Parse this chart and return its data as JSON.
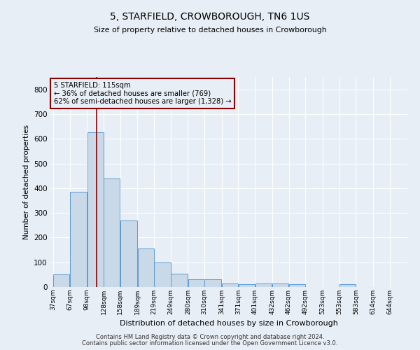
{
  "title": "5, STARFIELD, CROWBOROUGH, TN6 1US",
  "subtitle": "Size of property relative to detached houses in Crowborough",
  "xlabel": "Distribution of detached houses by size in Crowborough",
  "ylabel": "Number of detached properties",
  "bar_color": "#c9d9e8",
  "bar_edge_color": "#5b9bd5",
  "bin_labels": [
    "37sqm",
    "67sqm",
    "98sqm",
    "128sqm",
    "158sqm",
    "189sqm",
    "219sqm",
    "249sqm",
    "280sqm",
    "310sqm",
    "341sqm",
    "371sqm",
    "401sqm",
    "432sqm",
    "462sqm",
    "492sqm",
    "523sqm",
    "553sqm",
    "583sqm",
    "614sqm",
    "644sqm"
  ],
  "bar_heights": [
    50,
    385,
    625,
    440,
    270,
    155,
    100,
    55,
    30,
    30,
    15,
    10,
    15,
    15,
    10,
    0,
    0,
    10,
    0,
    0,
    0
  ],
  "vline_x": 115,
  "vline_color": "#8b0000",
  "annotation_text": "5 STARFIELD: 115sqm\n← 36% of detached houses are smaller (769)\n62% of semi-detached houses are larger (1,328) →",
  "annotation_box_color": "#8b0000",
  "annotation_text_color": "#000000",
  "ylim": [
    0,
    850
  ],
  "yticks": [
    0,
    100,
    200,
    300,
    400,
    500,
    600,
    700,
    800
  ],
  "grid_color": "#ffffff",
  "bg_color": "#e8eef5",
  "footer_line1": "Contains HM Land Registry data © Crown copyright and database right 2024.",
  "footer_line2": "Contains public sector information licensed under the Open Government Licence v3.0.",
  "bin_edges": [
    37,
    67,
    98,
    128,
    158,
    189,
    219,
    249,
    280,
    310,
    341,
    371,
    401,
    432,
    462,
    492,
    523,
    553,
    583,
    614,
    644,
    674
  ]
}
